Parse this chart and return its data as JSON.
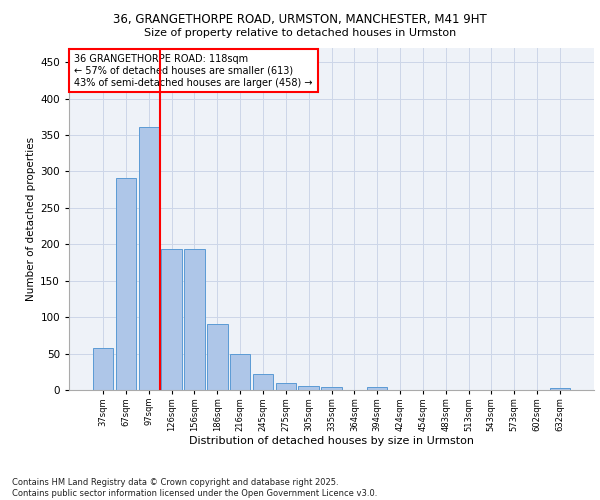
{
  "title_line1": "36, GRANGETHORPE ROAD, URMSTON, MANCHESTER, M41 9HT",
  "title_line2": "Size of property relative to detached houses in Urmston",
  "xlabel": "Distribution of detached houses by size in Urmston",
  "ylabel": "Number of detached properties",
  "categories": [
    "37sqm",
    "67sqm",
    "97sqm",
    "126sqm",
    "156sqm",
    "186sqm",
    "216sqm",
    "245sqm",
    "275sqm",
    "305sqm",
    "335sqm",
    "364sqm",
    "394sqm",
    "424sqm",
    "454sqm",
    "483sqm",
    "513sqm",
    "543sqm",
    "573sqm",
    "602sqm",
    "632sqm"
  ],
  "values": [
    58,
    291,
    361,
    194,
    193,
    91,
    49,
    22,
    9,
    5,
    4,
    0,
    4,
    0,
    0,
    0,
    0,
    0,
    0,
    0,
    3
  ],
  "bar_color": "#aec6e8",
  "bar_edge_color": "#5b9bd5",
  "grid_color": "#ccd6e8",
  "vline_color": "red",
  "annotation_text": "36 GRANGETHORPE ROAD: 118sqm\n← 57% of detached houses are smaller (613)\n43% of semi-detached houses are larger (458) →",
  "annotation_box_color": "white",
  "annotation_box_edge": "red",
  "ylim": [
    0,
    470
  ],
  "yticks": [
    0,
    50,
    100,
    150,
    200,
    250,
    300,
    350,
    400,
    450
  ],
  "footer": "Contains HM Land Registry data © Crown copyright and database right 2025.\nContains public sector information licensed under the Open Government Licence v3.0.",
  "bg_color": "#eef2f8",
  "fig_bg_color": "#ffffff",
  "vline_index": 2
}
